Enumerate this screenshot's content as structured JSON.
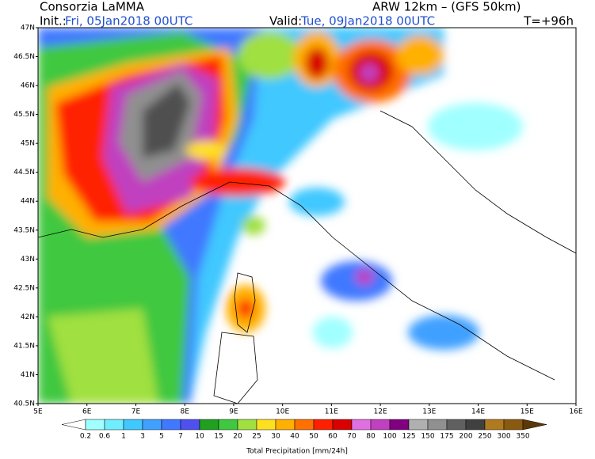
{
  "header": {
    "title": "Consorzia LaMMA",
    "model": "ARW 12km – (GFS 50km)",
    "init_label": "Init.:",
    "init_value": "Fri, 05Jan2018 00UTC",
    "valid_label": "Valid:",
    "valid_value": "Tue, 09Jan2018 00UTC",
    "lead": "T=+96h"
  },
  "map": {
    "lat_labels": [
      "47N",
      "46.5N",
      "46N",
      "45.5N",
      "45N",
      "44.5N",
      "44N",
      "43.5N",
      "43N",
      "42.5N",
      "42N",
      "41.5N",
      "41N",
      "40.5N"
    ],
    "lon_labels": [
      "5E",
      "6E",
      "7E",
      "8E",
      "9E",
      "10E",
      "11E",
      "12E",
      "13E",
      "14E",
      "15E",
      "16E"
    ]
  },
  "legend": {
    "title": "Total Precipitation [mm/24h]",
    "levels": [
      0.2,
      0.6,
      1,
      3,
      5,
      7,
      10,
      15,
      20,
      25,
      30,
      40,
      50,
      60,
      70,
      80,
      100,
      125,
      150,
      175,
      200,
      250,
      300,
      350
    ],
    "colors": [
      "#ffffff",
      "#a0ffff",
      "#70eeff",
      "#40c8ff",
      "#40a0ff",
      "#4078ff",
      "#5050f0",
      "#20a020",
      "#40c840",
      "#a0e040",
      "#ffe020",
      "#ffb000",
      "#ff7000",
      "#ff2000",
      "#d80000",
      "#e070e0",
      "#c040c0",
      "#800080",
      "#b0b0b0",
      "#909090",
      "#606060",
      "#404040",
      "#b07a20",
      "#8a5a10",
      "#5a3808"
    ]
  }
}
